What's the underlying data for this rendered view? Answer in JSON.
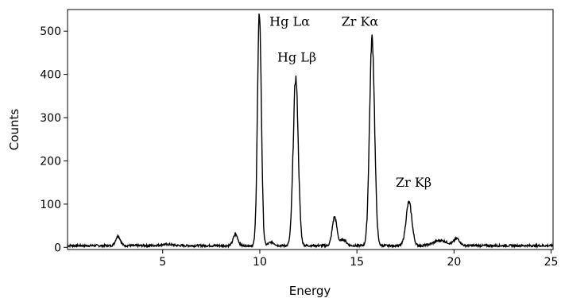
{
  "chart_data": {
    "type": "line",
    "xlabel": "Energy",
    "ylabel": "Counts",
    "xlim": [
      0.1,
      25.1
    ],
    "ylim": [
      -5,
      550
    ],
    "xticks": [
      5,
      10,
      15,
      20,
      25
    ],
    "yticks": [
      0,
      100,
      200,
      300,
      400,
      500
    ],
    "grid": false,
    "annotations": [
      {
        "text": "Hg Lα",
        "x": 10.5,
        "y": 512
      },
      {
        "text": "Hg Lβ",
        "x": 10.9,
        "y": 430
      },
      {
        "text": "Zr Kα",
        "x": 14.2,
        "y": 512
      },
      {
        "text": "Zr Kβ",
        "x": 17.0,
        "y": 140
      }
    ],
    "series": [
      {
        "color": "#000000",
        "baseline": 4,
        "peaks": [
          {
            "center": 2.7,
            "height": 22,
            "width": 0.12
          },
          {
            "center": 5.2,
            "height": 3,
            "width": 0.3
          },
          {
            "center": 8.75,
            "height": 26,
            "width": 0.12
          },
          {
            "center": 9.98,
            "height": 537,
            "width": 0.1
          },
          {
            "center": 10.6,
            "height": 8,
            "width": 0.15
          },
          {
            "center": 11.85,
            "height": 388,
            "width": 0.13
          },
          {
            "center": 13.85,
            "height": 66,
            "width": 0.12
          },
          {
            "center": 14.3,
            "height": 14,
            "width": 0.15
          },
          {
            "center": 15.78,
            "height": 480,
            "width": 0.13
          },
          {
            "center": 17.68,
            "height": 100,
            "width": 0.15
          },
          {
            "center": 19.3,
            "height": 12,
            "width": 0.35
          },
          {
            "center": 20.15,
            "height": 16,
            "width": 0.15
          }
        ]
      }
    ]
  }
}
